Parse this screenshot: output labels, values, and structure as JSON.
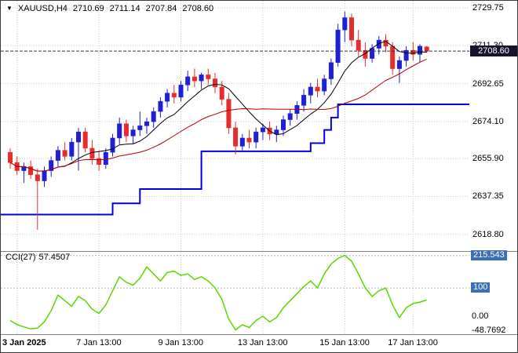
{
  "header": {
    "symbol": "XAUUSD,H4",
    "open": "2710.69",
    "high": "2711.14",
    "low": "2707.84",
    "close": "2708.60"
  },
  "indicator": {
    "label": "CCI(27)",
    "value": "57.4507"
  },
  "price_axis": {
    "ticks": [
      2729.75,
      2711.3,
      2692.65,
      2674.1,
      2655.9,
      2637.35,
      2618.8
    ],
    "current": "2708.60"
  },
  "cci_axis": {
    "boxed": [
      {
        "label": "215.543",
        "value": 215.543
      },
      {
        "label": "100",
        "value": 100
      }
    ],
    "plain": [
      {
        "label": "0.00",
        "value": 0
      },
      {
        "label": "-48.7692",
        "value": -48.7692
      }
    ]
  },
  "colors": {
    "up": "#1f1fd4",
    "down": "#e82c2c",
    "ma_fast": "#000000",
    "ma_slow": "#b30000",
    "support": "#0000dd",
    "cci": "#58d800",
    "grid": "#c9c9c9",
    "level_line": "#b5b5b5",
    "separator": "#808080",
    "badge_bg": "#14142e",
    "level_box_bg": "#3b6fb5",
    "current_line": "#333355"
  },
  "chart_data": [
    {
      "type": "candlestick",
      "title": "XAUUSD,H4",
      "symbol": "XAUUSD",
      "timeframe": "H4",
      "ylim": [
        2611,
        2732.5
      ],
      "price_ticks": [
        2729.75,
        2711.3,
        2692.65,
        2674.1,
        2655.9,
        2637.35,
        2618.8
      ],
      "time_ticks": [
        {
          "label": "3 Jan 2025",
          "index": 1,
          "bold": true
        },
        {
          "label": "7 Jan 13:00",
          "index": 13
        },
        {
          "label": "9 Jan 13:00",
          "index": 25
        },
        {
          "label": "13 Jan 13:00",
          "index": 37
        },
        {
          "label": "15 Jan 13:00",
          "index": 49
        },
        {
          "label": "17 Jan 13:00",
          "index": 59
        }
      ],
      "candles": [
        [
          2659,
          2661,
          2651,
          2654
        ],
        [
          2654,
          2657,
          2648,
          2650
        ],
        [
          2650,
          2654,
          2644,
          2652
        ],
        [
          2652,
          2655,
          2646,
          2648
        ],
        [
          2648,
          2651,
          2621,
          2645
        ],
        [
          2645,
          2652,
          2642,
          2650
        ],
        [
          2650,
          2657,
          2647,
          2655
        ],
        [
          2655,
          2662,
          2652,
          2660
        ],
        [
          2660,
          2664,
          2655,
          2657
        ],
        [
          2657,
          2666,
          2655,
          2664
        ],
        [
          2664,
          2671,
          2650,
          2669
        ],
        [
          2669,
          2671,
          2659,
          2661
        ],
        [
          2661,
          2665,
          2653,
          2656
        ],
        [
          2656,
          2660,
          2650,
          2653
        ],
        [
          2653,
          2661,
          2651,
          2659
        ],
        [
          2659,
          2668,
          2657,
          2666
        ],
        [
          2666,
          2676,
          2663,
          2673
        ],
        [
          2673,
          2675,
          2664,
          2667
        ],
        [
          2667,
          2672,
          2663,
          2670
        ],
        [
          2670,
          2679,
          2667,
          2672
        ],
        [
          2672,
          2676,
          2668,
          2674
        ],
        [
          2674,
          2681,
          2671,
          2679
        ],
        [
          2679,
          2686,
          2676,
          2684
        ],
        [
          2684,
          2690,
          2681,
          2688
        ],
        [
          2688,
          2692,
          2683,
          2686
        ],
        [
          2686,
          2694,
          2684,
          2692
        ],
        [
          2692,
          2699,
          2689,
          2696
        ],
        [
          2696,
          2700,
          2691,
          2694
        ],
        [
          2694,
          2698,
          2690,
          2697
        ],
        [
          2697,
          2700,
          2692,
          2695
        ],
        [
          2695,
          2698,
          2688,
          2691
        ],
        [
          2691,
          2694,
          2682,
          2685
        ],
        [
          2685,
          2688,
          2668,
          2671
        ],
        [
          2671,
          2674,
          2658,
          2662
        ],
        [
          2662,
          2668,
          2660,
          2666
        ],
        [
          2666,
          2670,
          2661,
          2664
        ],
        [
          2664,
          2671,
          2661,
          2669
        ],
        [
          2669,
          2673,
          2665,
          2671
        ],
        [
          2671,
          2674,
          2665,
          2668
        ],
        [
          2668,
          2672,
          2664,
          2670
        ],
        [
          2670,
          2677,
          2667,
          2675
        ],
        [
          2675,
          2680,
          2672,
          2678
        ],
        [
          2678,
          2684,
          2675,
          2682
        ],
        [
          2682,
          2690,
          2679,
          2687
        ],
        [
          2687,
          2693,
          2683,
          2691
        ],
        [
          2691,
          2695,
          2686,
          2689
        ],
        [
          2689,
          2697,
          2687,
          2695
        ],
        [
          2695,
          2705,
          2692,
          2703
        ],
        [
          2703,
          2722,
          2701,
          2719
        ],
        [
          2719,
          2728,
          2713,
          2725
        ],
        [
          2725,
          2727,
          2711,
          2714
        ],
        [
          2714,
          2719,
          2706,
          2709
        ],
        [
          2709,
          2713,
          2701,
          2705
        ],
        [
          2705,
          2712,
          2703,
          2710
        ],
        [
          2710,
          2716,
          2707,
          2714
        ],
        [
          2714,
          2717,
          2708,
          2711
        ],
        [
          2711,
          2713,
          2697,
          2700
        ],
        [
          2700,
          2706,
          2693,
          2704
        ],
        [
          2704,
          2711,
          2701,
          2709
        ],
        [
          2709,
          2713,
          2704,
          2707
        ],
        [
          2707,
          2712,
          2703,
          2711
        ],
        [
          2710.7,
          2711.1,
          2707.8,
          2708.6
        ]
      ],
      "overlays": {
        "ma_fast_period": 8,
        "ma_slow_period": 20,
        "support_steps": [
          [
            0,
            15,
            2628.5
          ],
          [
            15,
            19,
            2634
          ],
          [
            19,
            28,
            2641
          ],
          [
            28,
            44,
            2659.5
          ],
          [
            44,
            46,
            2663.5
          ],
          [
            46,
            47,
            2670
          ],
          [
            47,
            48,
            2676
          ],
          [
            48,
            62,
            2682.5
          ]
        ]
      },
      "current_price": 2708.6
    },
    {
      "type": "line",
      "name": "CCI",
      "params": "27",
      "ylim": [
        -61,
        220
      ],
      "levels": [
        100,
        215.543
      ],
      "max": 215.543,
      "min": -48.7692,
      "current": 57.4507,
      "values": [
        -15,
        -30,
        -38,
        -45,
        -42,
        -20,
        20,
        75,
        55,
        35,
        70,
        55,
        25,
        10,
        40,
        90,
        140,
        120,
        110,
        135,
        175,
        150,
        125,
        155,
        160,
        145,
        150,
        130,
        140,
        125,
        100,
        60,
        -10,
        -48.77,
        -30,
        -40,
        -15,
        0,
        -20,
        -5,
        30,
        55,
        80,
        105,
        125,
        100,
        150,
        185,
        205,
        215.54,
        195,
        150,
        100,
        70,
        90,
        100,
        40,
        -5,
        30,
        45,
        50,
        57.45
      ]
    }
  ]
}
